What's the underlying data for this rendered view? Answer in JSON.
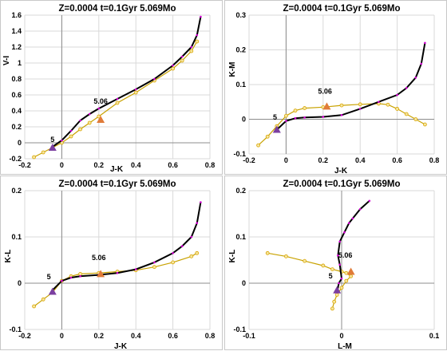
{
  "chart_data": [
    {
      "type": "line",
      "title": "Z=0.0004  t=0.1Gyr  5.069Mo",
      "xlabel": "J-K",
      "ylabel": "V-I",
      "xlim": [
        -0.2,
        0.8
      ],
      "ylim": [
        -0.2,
        1.6
      ],
      "xticks": [
        "-0.2",
        "0",
        "0.2",
        "0.4",
        "0.6",
        "0.8"
      ],
      "yticks": [
        "-0.2",
        "0",
        "0.2",
        "0.4",
        "0.6",
        "0.8",
        "1",
        "1.2",
        "1.4",
        "1.6"
      ],
      "xtick_values": [
        -0.2,
        0,
        0.2,
        0.4,
        0.6,
        0.8
      ],
      "ytick_values": [
        -0.2,
        0,
        0.2,
        0.4,
        0.6,
        0.8,
        1.0,
        1.2,
        1.4,
        1.6
      ],
      "series": [
        {
          "color": "#000000",
          "marker": "dot-magenta",
          "x": [
            -0.05,
            0.0,
            0.05,
            0.1,
            0.15,
            0.2,
            0.3,
            0.4,
            0.5,
            0.6,
            0.65,
            0.7,
            0.73,
            0.75
          ],
          "y": [
            -0.05,
            0.03,
            0.15,
            0.28,
            0.36,
            0.43,
            0.55,
            0.67,
            0.8,
            0.97,
            1.08,
            1.2,
            1.35,
            1.58
          ]
        },
        {
          "color": "#d9a400",
          "marker": "circle-yellow",
          "x": [
            -0.15,
            -0.1,
            -0.05,
            0.0,
            0.05,
            0.1,
            0.15,
            0.2,
            0.3,
            0.4,
            0.5,
            0.6,
            0.65,
            0.7,
            0.73
          ],
          "y": [
            -0.18,
            -0.12,
            -0.06,
            0.0,
            0.08,
            0.17,
            0.25,
            0.33,
            0.5,
            0.63,
            0.78,
            0.93,
            1.03,
            1.15,
            1.27
          ]
        }
      ],
      "annotations": [
        {
          "text": "5",
          "x": -0.05,
          "y": -0.05
        },
        {
          "text": "5.06",
          "x": 0.21,
          "y": 0.43
        }
      ],
      "markers": [
        {
          "shape": "triangle",
          "color": "#7b3fa0",
          "x": -0.05,
          "y": -0.06
        },
        {
          "shape": "triangle",
          "color": "#e07b39",
          "x": 0.21,
          "y": 0.29
        }
      ]
    },
    {
      "type": "line",
      "title": "Z=0.0004  t=0.1Gyr  5.069Mo",
      "xlabel": "J-K",
      "ylabel": "K-M",
      "xlim": [
        -0.2,
        0.8
      ],
      "ylim": [
        -0.1,
        0.3
      ],
      "xticks": [
        "-0.2",
        "0",
        "0.2",
        "0.4",
        "0.6",
        "0.8"
      ],
      "yticks": [
        "-0.1",
        "0",
        "0.1",
        "0.2",
        "0.3"
      ],
      "xtick_values": [
        -0.2,
        0,
        0.2,
        0.4,
        0.6,
        0.8
      ],
      "ytick_values": [
        -0.1,
        0,
        0.1,
        0.2,
        0.3
      ],
      "series": [
        {
          "color": "#000000",
          "marker": "dot-magenta",
          "x": [
            -0.05,
            0.0,
            0.05,
            0.1,
            0.2,
            0.3,
            0.4,
            0.5,
            0.6,
            0.65,
            0.7,
            0.73,
            0.75
          ],
          "y": [
            -0.03,
            -0.005,
            0.003,
            0.005,
            0.007,
            0.012,
            0.03,
            0.05,
            0.07,
            0.09,
            0.12,
            0.16,
            0.22
          ]
        },
        {
          "color": "#d9a400",
          "marker": "circle-yellow",
          "x": [
            -0.15,
            -0.1,
            -0.05,
            0.0,
            0.05,
            0.1,
            0.2,
            0.3,
            0.4,
            0.5,
            0.55,
            0.6,
            0.65,
            0.7,
            0.75
          ],
          "y": [
            -0.075,
            -0.05,
            -0.02,
            0.01,
            0.025,
            0.032,
            0.035,
            0.04,
            0.043,
            0.045,
            0.042,
            0.03,
            0.015,
            0.0,
            -0.015
          ]
        }
      ],
      "annotations": [
        {
          "text": "5",
          "x": -0.06,
          "y": -0.015
        },
        {
          "text": "5.06",
          "x": 0.21,
          "y": 0.06
        }
      ],
      "markers": [
        {
          "shape": "triangle",
          "color": "#7b3fa0",
          "x": -0.05,
          "y": -0.03
        },
        {
          "shape": "triangle",
          "color": "#e07b39",
          "x": 0.22,
          "y": 0.037
        }
      ]
    },
    {
      "type": "line",
      "title": "Z=0.0004  t=0.1Gyr  5.069Mo",
      "xlabel": "J-K",
      "ylabel": "K-L",
      "xlim": [
        -0.2,
        0.8
      ],
      "ylim": [
        -0.1,
        0.2
      ],
      "xticks": [
        "-0.2",
        "0",
        "0.2",
        "0.4",
        "0.6",
        "0.8"
      ],
      "yticks": [
        "-0.1",
        "0",
        "0.1",
        "0.2"
      ],
      "xtick_values": [
        -0.2,
        0,
        0.2,
        0.4,
        0.6,
        0.8
      ],
      "ytick_values": [
        -0.1,
        0,
        0.1,
        0.2
      ],
      "series": [
        {
          "color": "#000000",
          "marker": "dot-magenta",
          "x": [
            -0.05,
            0.0,
            0.05,
            0.1,
            0.2,
            0.3,
            0.4,
            0.5,
            0.6,
            0.65,
            0.7,
            0.73,
            0.75
          ],
          "y": [
            -0.015,
            0.005,
            0.012,
            0.015,
            0.018,
            0.022,
            0.03,
            0.045,
            0.065,
            0.08,
            0.1,
            0.13,
            0.175
          ]
        },
        {
          "color": "#d9a400",
          "marker": "circle-yellow",
          "x": [
            -0.15,
            -0.1,
            -0.05,
            0.0,
            0.05,
            0.1,
            0.2,
            0.3,
            0.4,
            0.5,
            0.6,
            0.7,
            0.73
          ],
          "y": [
            -0.05,
            -0.035,
            -0.02,
            0.005,
            0.015,
            0.02,
            0.022,
            0.025,
            0.028,
            0.035,
            0.045,
            0.058,
            0.065
          ]
        }
      ],
      "annotations": [
        {
          "text": "5",
          "x": -0.07,
          "y": -0.002
        },
        {
          "text": "5.06",
          "x": 0.2,
          "y": 0.04
        }
      ],
      "markers": [
        {
          "shape": "triangle",
          "color": "#7b3fa0",
          "x": -0.05,
          "y": -0.018
        },
        {
          "shape": "triangle",
          "color": "#e07b39",
          "x": 0.21,
          "y": 0.02
        }
      ]
    },
    {
      "type": "line",
      "title": "Z=0.0004  t=0.1Gyr  5.069Mo",
      "xlabel": "L-M",
      "ylabel": "K-L",
      "xlim": [
        -0.1,
        0.1
      ],
      "ylim": [
        -0.1,
        0.2
      ],
      "xticks": [
        "-0.1",
        "0",
        "0.1"
      ],
      "yticks": [
        "-0.1",
        "0",
        "0.1",
        "0.2"
      ],
      "xtick_values": [
        -0.1,
        0,
        0.1
      ],
      "ytick_values": [
        -0.1,
        0,
        0.1,
        0.2
      ],
      "series": [
        {
          "color": "#000000",
          "marker": "dot-magenta",
          "x": [
            -0.005,
            -0.003,
            0.0,
            -0.002,
            -0.004,
            -0.002,
            0.003,
            0.008,
            0.012,
            0.02,
            0.03
          ],
          "y": [
            -0.02,
            0.0,
            0.01,
            0.04,
            0.06,
            0.09,
            0.11,
            0.13,
            0.14,
            0.16,
            0.178
          ]
        },
        {
          "color": "#d9a400",
          "marker": "circle-yellow",
          "x": [
            -0.08,
            -0.06,
            -0.04,
            -0.02,
            -0.01,
            0.0,
            0.005,
            0.01,
            0.005,
            0.0,
            -0.005,
            -0.008,
            -0.01
          ],
          "y": [
            0.065,
            0.058,
            0.048,
            0.038,
            0.03,
            0.025,
            0.022,
            0.015,
            0.005,
            -0.01,
            -0.025,
            -0.04,
            -0.055
          ]
        }
      ],
      "annotations": [
        {
          "text": "5",
          "x": -0.012,
          "y": 0.0
        },
        {
          "text": "5.06",
          "x": 0.004,
          "y": 0.045
        }
      ],
      "markers": [
        {
          "shape": "triangle",
          "color": "#7b3fa0",
          "x": -0.005,
          "y": -0.015
        },
        {
          "shape": "triangle",
          "color": "#e07b39",
          "x": 0.01,
          "y": 0.025
        }
      ]
    }
  ]
}
